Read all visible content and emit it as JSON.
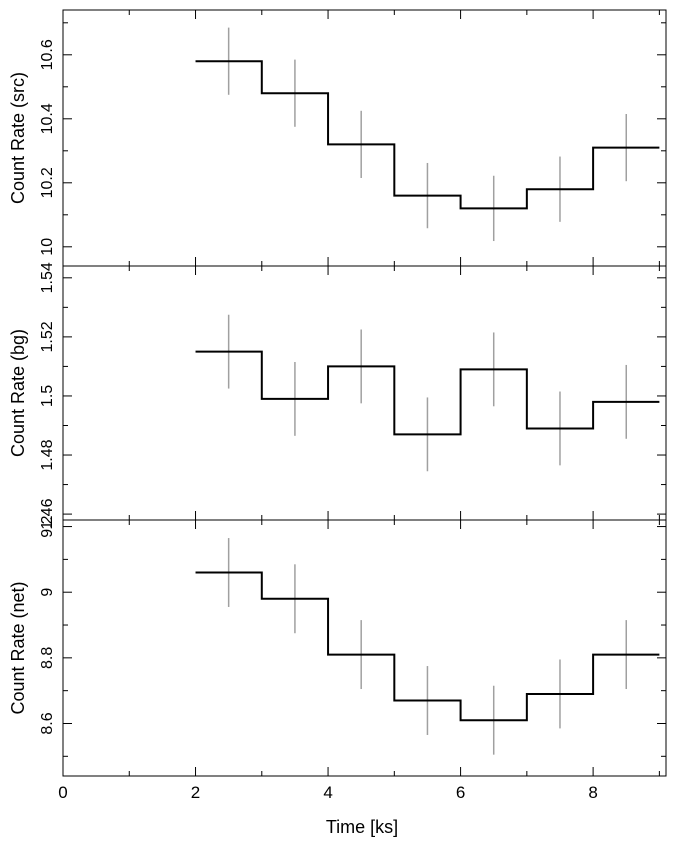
{
  "chart_data": {
    "type": "line",
    "step": true,
    "xlabel": "Time [ks]",
    "xlim": [
      0,
      9.1
    ],
    "xticks": [
      0,
      2,
      4,
      6,
      8
    ],
    "bin_width": 1,
    "bin_starts": [
      2,
      3,
      4,
      5,
      6,
      7,
      8
    ],
    "line_color": "#000000",
    "error_bar_color": "#a0a0a0",
    "panels": [
      {
        "ylabel": "Count Rate (src)",
        "ylim": [
          9.94,
          10.74
        ],
        "yticks": [
          10,
          10.2,
          10.4,
          10.6
        ],
        "values": [
          10.58,
          10.48,
          10.32,
          10.16,
          10.12,
          10.18,
          10.31
        ],
        "errors": [
          0.105,
          0.105,
          0.105,
          0.102,
          0.102,
          0.102,
          0.105
        ]
      },
      {
        "ylabel": "Count Rate (bg)",
        "ylim": [
          1.458,
          1.544
        ],
        "yticks": [
          1.46,
          1.48,
          1.5,
          1.52,
          1.54
        ],
        "values": [
          1.515,
          1.499,
          1.51,
          1.487,
          1.509,
          1.489,
          1.498
        ],
        "errors": [
          0.0125,
          0.0125,
          0.0125,
          0.0125,
          0.0125,
          0.0125,
          0.0125
        ]
      },
      {
        "ylabel": "Count Rate (net)",
        "ylim": [
          8.44,
          9.22
        ],
        "yticks": [
          8.6,
          8.8,
          9,
          9.2
        ],
        "values": [
          9.06,
          8.98,
          8.81,
          8.67,
          8.61,
          8.69,
          8.81
        ],
        "errors": [
          0.105,
          0.105,
          0.105,
          0.105,
          0.105,
          0.105,
          0.105
        ]
      }
    ]
  }
}
